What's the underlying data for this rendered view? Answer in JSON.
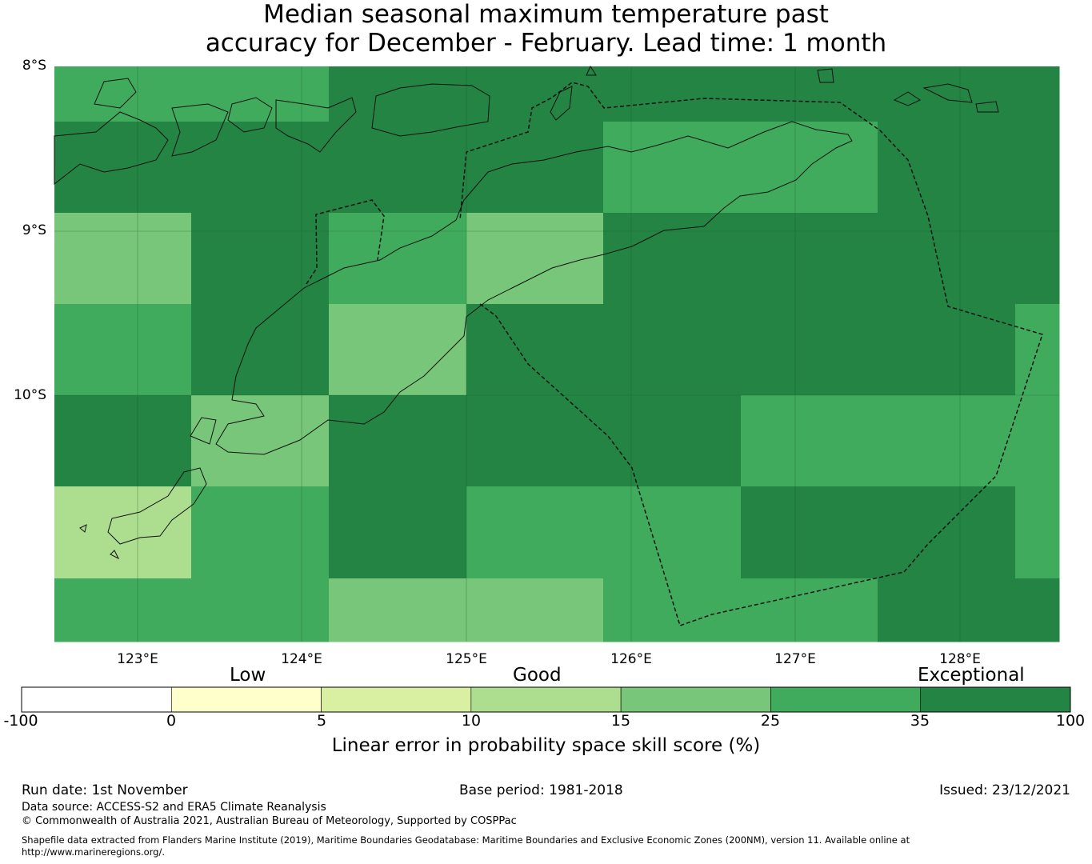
{
  "title": {
    "line1": "Median seasonal maximum temperature past",
    "line2": "accuracy for December - February. Lead time: 1 month"
  },
  "map": {
    "lat_labels": [
      "8°S",
      "9°S",
      "10°S"
    ],
    "lon_labels": [
      "123°E",
      "124°E",
      "125°E",
      "126°E",
      "127°E",
      "128°E"
    ],
    "colors": {
      "b0": "#ffffcc",
      "b1": "#d9f0a3",
      "b2": "#addd8e",
      "b3": "#78c679",
      "b4": "#41ab5d",
      "b5": "#238443"
    },
    "grid": [
      [
        "b4",
        "b4",
        "b5",
        "b5",
        "b5",
        "b5",
        "b5",
        "b5"
      ],
      [
        "b5",
        "b5",
        "b5",
        "b5",
        "b4",
        "b4",
        "b5",
        "b5"
      ],
      [
        "b3",
        "b5",
        "b4",
        "b3",
        "b5",
        "b5",
        "b5",
        "b5"
      ],
      [
        "b4",
        "b5",
        "b3",
        "b5",
        "b5",
        "b5",
        "b5",
        "b4"
      ],
      [
        "b5",
        "b3",
        "b5",
        "b5",
        "b5",
        "b4",
        "b4",
        "b4"
      ],
      [
        "b2",
        "b4",
        "b5",
        "b4",
        "b4",
        "b5",
        "b5",
        "b4"
      ],
      [
        "b4",
        "b4",
        "b3",
        "b3",
        "b4",
        "b4",
        "b5",
        "b5"
      ]
    ]
  },
  "colorbar": {
    "categories": [
      "Low",
      "Good",
      "Exceptional"
    ],
    "ticks": [
      "-100",
      "0",
      "5",
      "10",
      "15",
      "25",
      "35",
      "100"
    ],
    "bins": [
      "#ffffff",
      "#ffffcc",
      "#d9f0a3",
      "#addd8e",
      "#78c679",
      "#41ab5d",
      "#238443"
    ],
    "label": "Linear error in probability space skill score (%)"
  },
  "footer": {
    "run_date": "Run date: 1st November",
    "base_period": "Base period: 1981-2018",
    "issued": "Issued: 23/12/2021",
    "data_source": "Data source: ACCESS-S2 and ERA5 Climate Reanalysis",
    "copyright": "© Commonwealth of Australia 2021, Australian Bureau of Meteorology, Supported by COSPPac",
    "shapefile_line1": "Shapefile data extracted from Flanders Marine Institute (2019), Maritime Boundaries Geodatabase: Maritime Boundaries and Exclusive Economic Zones (200NM), version 11. Available online at",
    "shapefile_line2": "http://www.marineregions.org/."
  }
}
